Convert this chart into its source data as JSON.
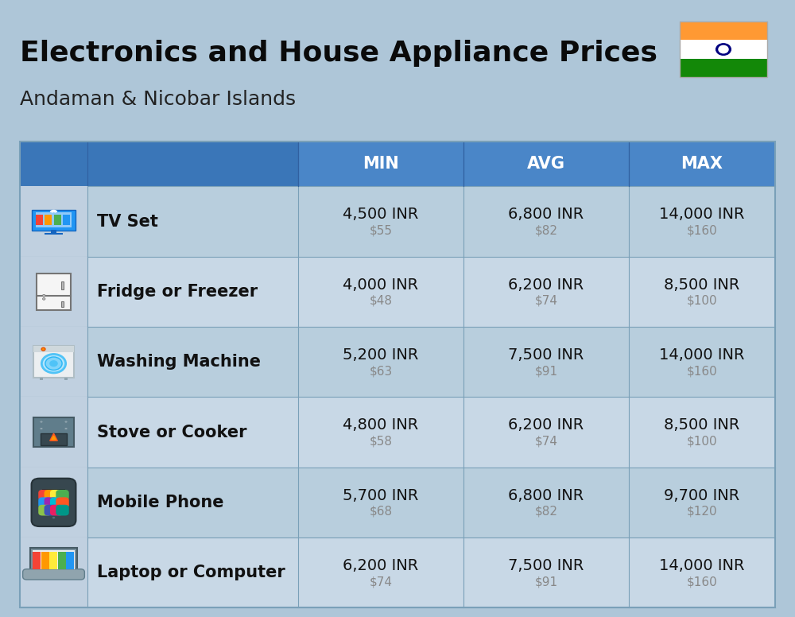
{
  "title": "Electronics and House Appliance Prices",
  "subtitle": "Andaman & Nicobar Islands",
  "bg_color": "#aec6d8",
  "header_bg_color": "#4a86c8",
  "header_left_bg": "#3a76b8",
  "header_text_color": "#ffffff",
  "row_bg_even": "#b8cedd",
  "row_bg_odd": "#c8d8e6",
  "icon_col_bg": "#b0c8dc",
  "item_name_color": "#111111",
  "inr_color": "#111111",
  "usd_color": "#888888",
  "grid_color": "#7aa0b8",
  "columns": [
    "MIN",
    "AVG",
    "MAX"
  ],
  "rows": [
    {
      "name": "TV Set",
      "min_inr": "4,500 INR",
      "min_usd": "$55",
      "avg_inr": "6,800 INR",
      "avg_usd": "$82",
      "max_inr": "14,000 INR",
      "max_usd": "$160"
    },
    {
      "name": "Fridge or Freezer",
      "min_inr": "4,000 INR",
      "min_usd": "$48",
      "avg_inr": "6,200 INR",
      "avg_usd": "$74",
      "max_inr": "8,500 INR",
      "max_usd": "$100"
    },
    {
      "name": "Washing Machine",
      "min_inr": "5,200 INR",
      "min_usd": "$63",
      "avg_inr": "7,500 INR",
      "avg_usd": "$91",
      "max_inr": "14,000 INR",
      "max_usd": "$160"
    },
    {
      "name": "Stove or Cooker",
      "min_inr": "4,800 INR",
      "min_usd": "$58",
      "avg_inr": "6,200 INR",
      "avg_usd": "$74",
      "max_inr": "8,500 INR",
      "max_usd": "$100"
    },
    {
      "name": "Mobile Phone",
      "min_inr": "5,700 INR",
      "min_usd": "$68",
      "avg_inr": "6,800 INR",
      "avg_usd": "$82",
      "max_inr": "9,700 INR",
      "max_usd": "$120"
    },
    {
      "name": "Laptop or Computer",
      "min_inr": "6,200 INR",
      "min_usd": "$74",
      "avg_inr": "7,500 INR",
      "avg_usd": "$91",
      "max_inr": "14,000 INR",
      "max_usd": "$160"
    }
  ],
  "title_fontsize": 26,
  "subtitle_fontsize": 18,
  "header_fontsize": 15,
  "item_fontsize": 15,
  "value_fontsize": 14,
  "usd_fontsize": 11,
  "flag_orange": "#FF9933",
  "flag_white": "#FFFFFF",
  "flag_green": "#138808",
  "flag_chakra": "#000080"
}
